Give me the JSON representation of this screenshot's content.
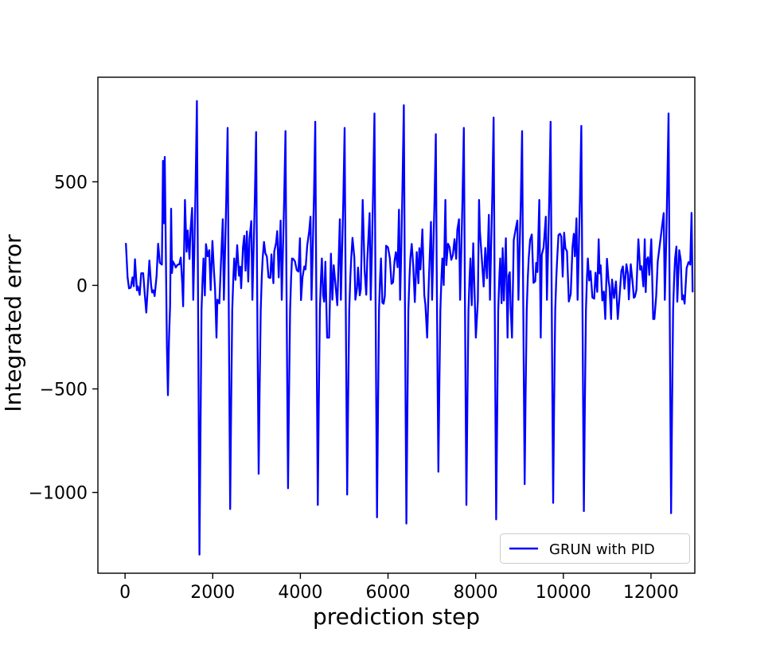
{
  "figure": {
    "background": "#ffffff"
  },
  "chart_data": {
    "type": "line",
    "title": "",
    "xlabel": "prediction step",
    "ylabel": "Integrated error",
    "grid": false,
    "xlim": [
      -620,
      13000
    ],
    "ylim": [
      -1390,
      1005
    ],
    "xtick_values": [
      0,
      2000,
      4000,
      6000,
      8000,
      10000,
      12000
    ],
    "xtick_labels": [
      "0",
      "2000",
      "4000",
      "6000",
      "8000",
      "10000",
      "12000"
    ],
    "ytick_values": [
      -1000,
      -500,
      0,
      500
    ],
    "ytick_labels": [
      "−1000",
      "−500",
      "0",
      "500"
    ],
    "line_color": "#0000ff",
    "line_width": 2.3,
    "legend": {
      "label": "GRUN with PID",
      "position": "lower right",
      "border_color": "#cccccc",
      "background": "#ffffff"
    },
    "series_name": "GRUN with PID",
    "waveform": {
      "seed": 7,
      "noise_step_min": 20,
      "noise_step_var": 26,
      "spike_template": [
        [
          -110,
          0.42,
          "p"
        ],
        [
          -85,
          -70,
          "v"
        ],
        [
          -60,
          150,
          "v"
        ],
        [
          -30,
          0.55,
          "p"
        ],
        [
          0,
          1,
          "p"
        ],
        [
          20,
          0.12,
          "p"
        ],
        [
          40,
          0.5,
          "d"
        ],
        [
          58,
          1,
          "d"
        ],
        [
          80,
          0.55,
          "d"
        ],
        [
          105,
          -120,
          "v"
        ],
        [
          130,
          40,
          "v"
        ],
        [
          150,
          130,
          "v"
        ]
      ],
      "spike_template_double": [
        [
          -60,
          100,
          "v"
        ],
        [
          -35,
          0.97,
          "p"
        ],
        [
          -15,
          300,
          "v"
        ],
        [
          5,
          1,
          "p"
        ],
        [
          30,
          150,
          "v"
        ],
        [
          55,
          0.55,
          "d"
        ],
        [
          78,
          1,
          "d"
        ],
        [
          102,
          0.5,
          "d"
        ],
        [
          128,
          -100,
          "v"
        ],
        [
          150,
          370,
          "v"
        ],
        [
          170,
          60,
          "v"
        ]
      ],
      "segments": [
        {
          "type": "noise",
          "x0": 20,
          "x1": 820,
          "mean": 35,
          "amp": 95
        },
        {
          "type": "spike",
          "x": 900,
          "peak": 620,
          "dip": -530,
          "double": true
        },
        {
          "type": "noise",
          "x0": 1090,
          "x1": 1510,
          "mean": 80,
          "amp": 190
        },
        {
          "type": "spike",
          "x": 1640,
          "peak": 890,
          "dip": -1300
        },
        {
          "type": "noise",
          "x0": 1820,
          "x1": 2210,
          "mean": 80,
          "amp": 190
        },
        {
          "type": "spike",
          "x": 2340,
          "peak": 760,
          "dip": -1080
        },
        {
          "type": "noise",
          "x0": 2520,
          "x1": 2860,
          "mean": 80,
          "amp": 190
        },
        {
          "type": "spike",
          "x": 2990,
          "peak": 740,
          "dip": -910
        },
        {
          "type": "noise",
          "x0": 3170,
          "x1": 3530,
          "mean": 80,
          "amp": 190
        },
        {
          "type": "spike",
          "x": 3660,
          "peak": 745,
          "dip": -980
        },
        {
          "type": "noise",
          "x0": 3840,
          "x1": 4210,
          "mean": 80,
          "amp": 190
        },
        {
          "type": "spike",
          "x": 4340,
          "peak": 790,
          "dip": -1060
        },
        {
          "type": "noise",
          "x0": 4520,
          "x1": 4880,
          "mean": 80,
          "amp": 190
        },
        {
          "type": "spike",
          "x": 5010,
          "peak": 760,
          "dip": -1010
        },
        {
          "type": "noise",
          "x0": 5190,
          "x1": 5560,
          "mean": 80,
          "amp": 190
        },
        {
          "type": "spike",
          "x": 5690,
          "peak": 830,
          "dip": -1120
        },
        {
          "type": "noise",
          "x0": 5870,
          "x1": 6230,
          "mean": 80,
          "amp": 190
        },
        {
          "type": "spike",
          "x": 6360,
          "peak": 870,
          "dip": -1150
        },
        {
          "type": "noise",
          "x0": 6540,
          "x1": 6960,
          "mean": 80,
          "amp": 190
        },
        {
          "type": "spike",
          "x": 7090,
          "peak": 730,
          "dip": -900
        },
        {
          "type": "noise",
          "x0": 7270,
          "x1": 7600,
          "mean": 80,
          "amp": 190
        },
        {
          "type": "spike",
          "x": 7730,
          "peak": 760,
          "dip": -1060
        },
        {
          "type": "noise",
          "x0": 7910,
          "x1": 8280,
          "mean": 80,
          "amp": 190
        },
        {
          "type": "spike",
          "x": 8410,
          "peak": 810,
          "dip": -1130
        },
        {
          "type": "noise",
          "x0": 8590,
          "x1": 8930,
          "mean": 80,
          "amp": 190
        },
        {
          "type": "spike",
          "x": 9060,
          "peak": 745,
          "dip": -960
        },
        {
          "type": "noise",
          "x0": 9240,
          "x1": 9580,
          "mean": 80,
          "amp": 190
        },
        {
          "type": "spike",
          "x": 9710,
          "peak": 790,
          "dip": -1050
        },
        {
          "type": "noise",
          "x0": 9890,
          "x1": 10280,
          "mean": 80,
          "amp": 190
        },
        {
          "type": "spike",
          "x": 10410,
          "peak": 770,
          "dip": -1090
        },
        {
          "type": "noise",
          "x0": 10590,
          "x1": 12160,
          "mean": 30,
          "amp": 110
        },
        {
          "type": "spike",
          "x": 12400,
          "peak": 830,
          "dip": -1100
        },
        {
          "type": "noise",
          "x0": 12580,
          "x1": 12860,
          "mean": 60,
          "amp": 150
        },
        {
          "type": "anchors",
          "points": [
            [
              12895,
              100
            ],
            [
              12925,
              350
            ],
            [
              12950,
              -30
            ]
          ]
        }
      ]
    }
  }
}
